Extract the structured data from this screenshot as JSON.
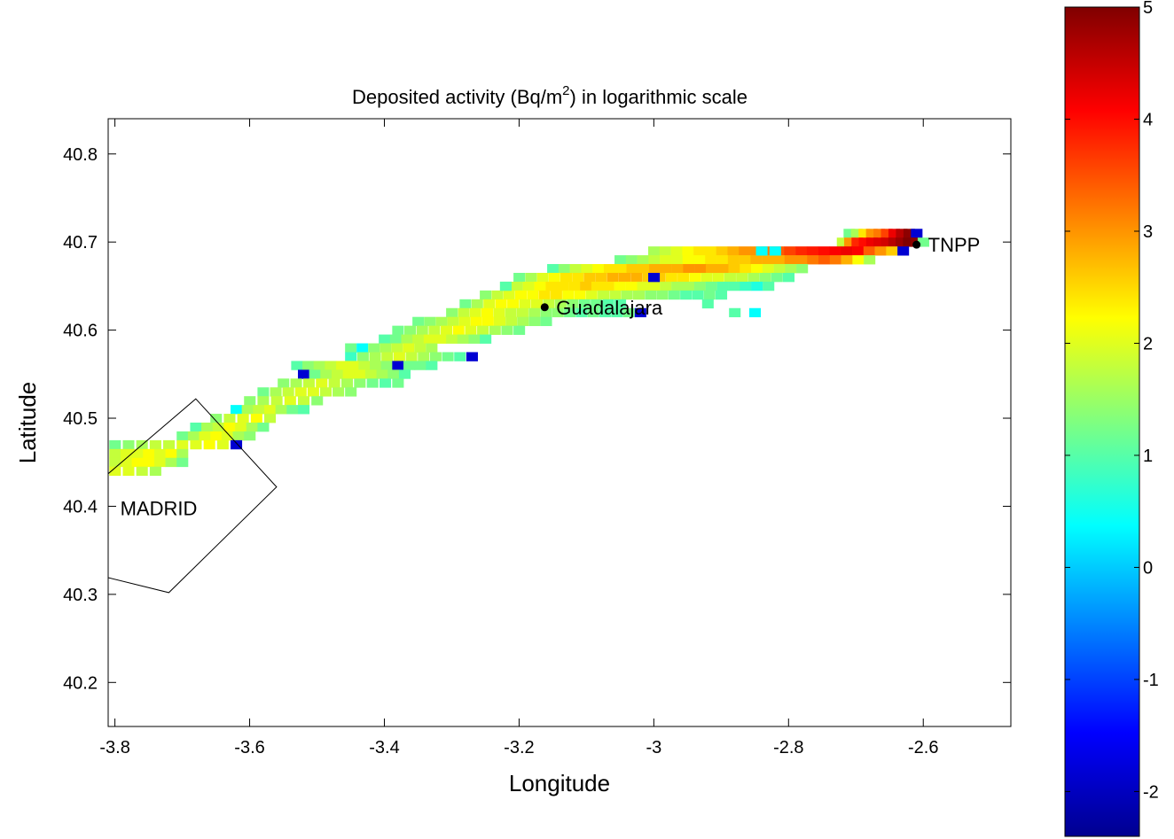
{
  "chart_data": {
    "type": "heatmap",
    "title": {
      "prefix": "Deposited activity (Bq/m",
      "superscript": "2",
      "suffix": ") in logarithmic scale"
    },
    "xlabel": "Longitude",
    "ylabel": "Latitude",
    "xlim": [
      -3.81,
      -2.47
    ],
    "ylim": [
      40.15,
      40.84
    ],
    "x_ticks": [
      -3.8,
      -3.6,
      -3.4,
      -3.2,
      -3.0,
      -2.8,
      -2.6
    ],
    "x_tick_labels": [
      "-3.8",
      "-3.6",
      "-3.4",
      "-3.2",
      "-3",
      "-2.8",
      "-2.6"
    ],
    "y_ticks": [
      40.2,
      40.3,
      40.4,
      40.5,
      40.6,
      40.7,
      40.8
    ],
    "y_tick_labels": [
      "40.2",
      "40.3",
      "40.4",
      "40.5",
      "40.6",
      "40.7",
      "40.8"
    ],
    "grid": false,
    "colormap": "jet",
    "colorbar": {
      "range": [
        -2.4,
        5
      ],
      "ticks": [
        -2,
        -1,
        0,
        1,
        2,
        3,
        4,
        5
      ],
      "tick_labels": [
        "-2",
        "-1",
        "0",
        "1",
        "2",
        "3",
        "4",
        "5"
      ],
      "position": "right"
    },
    "cell_size": {
      "dlon": 0.01667,
      "dlat": 0.01
    },
    "plume_rows": [
      {
        "lat": 40.71,
        "lon_start": -2.71,
        "lon_end": -2.61,
        "values": [
          1.2,
          1.6,
          2.4,
          3.0,
          3.2,
          3.6,
          4.2,
          4.6,
          4.9,
          -1.8
        ]
      },
      {
        "lat": 40.7,
        "lon_start": -2.72,
        "lon_end": -2.6,
        "values": [
          1.8,
          3.0,
          3.8,
          4.0,
          4.2,
          4.3,
          4.4,
          4.6,
          4.8,
          5.0,
          4.9,
          1.2
        ]
      },
      {
        "lat": 40.69,
        "lon_start": -3.0,
        "lon_end": -2.63,
        "values": [
          1.6,
          1.8,
          2.0,
          2.2,
          2.4,
          2.4,
          2.6,
          2.8,
          3.0,
          3.0,
          3.2,
          3.4,
          3.6,
          3.8,
          3.9,
          4.0,
          4.1,
          4.2,
          4.1,
          3.4,
          3.0,
          2.6,
          -1.8
        ]
      },
      {
        "lat": 40.68,
        "lon_start": -3.05,
        "lon_end": -2.68,
        "values": [
          1.2,
          1.4,
          1.6,
          1.8,
          2.0,
          2.0,
          2.2,
          2.2,
          2.4,
          2.4,
          2.6,
          2.6,
          2.8,
          2.8,
          2.8,
          3.0,
          3.0,
          3.2,
          3.4,
          3.2,
          2.8,
          2.2,
          1.6
        ]
      },
      {
        "lat": 40.67,
        "lon_start": -3.15,
        "lon_end": -2.78,
        "values": [
          1.0,
          1.4,
          1.8,
          2.0,
          2.2,
          2.4,
          2.4,
          2.6,
          2.6,
          2.8,
          2.8,
          2.8,
          3.0,
          3.0,
          2.8,
          2.8,
          2.6,
          2.4,
          2.2,
          2.0,
          1.8,
          1.6,
          1.4
        ]
      },
      {
        "lat": 40.66,
        "lon_start": -3.2,
        "lon_end": -2.8,
        "values": [
          1.2,
          1.6,
          2.0,
          2.2,
          2.4,
          2.4,
          2.6,
          2.6,
          2.8,
          2.8,
          2.8,
          2.6,
          2.6,
          2.4,
          2.4,
          2.2,
          2.0,
          2.0,
          1.8,
          1.8,
          1.6,
          1.4,
          1.2,
          1.0
        ]
      },
      {
        "lat": 40.65,
        "lon_start": -3.22,
        "lon_end": -2.83,
        "values": [
          1.4,
          1.8,
          2.0,
          2.2,
          2.4,
          2.4,
          2.4,
          2.6,
          2.4,
          2.4,
          2.2,
          2.2,
          2.0,
          2.0,
          1.8,
          1.6,
          1.6,
          1.4,
          1.2,
          1.0,
          1.0,
          0.8,
          0.6,
          1.0
        ]
      },
      {
        "lat": 40.64,
        "lon_start": -3.25,
        "lon_end": -2.9,
        "values": [
          1.4,
          1.8,
          2.0,
          2.2,
          2.2,
          2.4,
          2.4,
          2.2,
          2.2,
          2.0,
          1.8,
          1.8,
          1.6,
          1.6,
          1.4,
          1.4,
          1.2,
          1.0,
          1.0,
          1.2,
          1.0
        ]
      },
      {
        "lat": 40.63,
        "lon_start": -3.28,
        "lon_end": -3.05,
        "values": [
          1.2,
          1.6,
          2.0,
          2.2,
          2.2,
          2.0,
          2.0,
          1.8,
          1.6,
          1.4,
          1.2,
          1.2,
          1.0,
          1.0
        ]
      },
      {
        "lat": 40.62,
        "lon_start": -3.3,
        "lon_end": -3.02,
        "values": [
          1.4,
          1.8,
          2.0,
          2.2,
          2.0,
          1.8,
          1.8,
          1.6,
          1.4,
          1.4,
          1.2,
          1.0,
          1.2,
          1.0,
          1.0,
          1.2,
          -1.8
        ]
      },
      {
        "lat": 40.61,
        "lon_start": -3.35,
        "lon_end": -3.16,
        "values": [
          1.2,
          1.4,
          1.6,
          1.8,
          2.0,
          2.2,
          2.2,
          2.0,
          1.8,
          1.6,
          1.4,
          1.2
        ]
      },
      {
        "lat": 40.6,
        "lon_start": -3.38,
        "lon_end": -3.2,
        "values": [
          1.2,
          1.4,
          1.6,
          1.8,
          2.0,
          2.2,
          2.0,
          1.8,
          1.6,
          1.4,
          1.2
        ]
      },
      {
        "lat": 40.59,
        "lon_start": -3.4,
        "lon_end": -3.25,
        "values": [
          1.0,
          1.2,
          1.6,
          1.8,
          2.0,
          2.0,
          1.8,
          1.6,
          1.4,
          1.0
        ]
      },
      {
        "lat": 40.58,
        "lon_start": -3.45,
        "lon_end": -3.33,
        "values": [
          1.2,
          0.4,
          1.4,
          1.6,
          1.8,
          2.0,
          1.8,
          1.6
        ]
      },
      {
        "lat": 40.57,
        "lon_start": -3.45,
        "lon_end": -3.27,
        "values": [
          0.8,
          1.4,
          1.6,
          1.8,
          2.0,
          1.8,
          1.6,
          1.4,
          1.2,
          1.0,
          -1.8
        ]
      },
      {
        "lat": 40.56,
        "lon_start": -3.53,
        "lon_end": -3.33,
        "values": [
          1.0,
          1.4,
          1.6,
          1.8,
          2.0,
          2.0,
          1.8,
          1.6,
          1.4,
          -1.8,
          1.2,
          1.2,
          1.0
        ]
      },
      {
        "lat": 40.55,
        "lon_start": -3.52,
        "lon_end": -3.37,
        "values": [
          -1.8,
          1.2,
          1.6,
          1.8,
          2.0,
          2.0,
          1.8,
          1.6,
          1.4,
          1.0
        ]
      },
      {
        "lat": 40.54,
        "lon_start": -3.55,
        "lon_end": -3.38,
        "values": [
          1.4,
          1.6,
          1.8,
          2.0,
          1.8,
          1.6,
          1.4,
          1.2,
          1.0,
          1.2
        ]
      },
      {
        "lat": 40.53,
        "lon_start": -3.58,
        "lon_end": -3.45,
        "values": [
          1.2,
          1.6,
          1.8,
          2.0,
          2.0,
          1.8,
          1.6,
          1.4
        ]
      },
      {
        "lat": 40.52,
        "lon_start": -3.6,
        "lon_end": -3.5,
        "values": [
          1.4,
          1.6,
          1.8,
          2.0,
          1.8,
          1.4
        ]
      },
      {
        "lat": 40.51,
        "lon_start": -3.62,
        "lon_end": -3.52,
        "values": [
          0.4,
          1.6,
          1.8,
          2.0,
          1.6,
          1.2,
          1.0
        ]
      },
      {
        "lat": 40.5,
        "lon_start": -3.65,
        "lon_end": -3.57,
        "values": [
          1.4,
          1.8,
          2.0,
          2.2,
          1.8
        ]
      },
      {
        "lat": 40.49,
        "lon_start": -3.68,
        "lon_end": -3.58,
        "values": [
          1.0,
          1.6,
          1.8,
          2.2,
          2.0,
          1.6,
          1.2
        ]
      },
      {
        "lat": 40.48,
        "lon_start": -3.7,
        "lon_end": -3.6,
        "values": [
          1.2,
          1.6,
          2.0,
          2.2,
          2.0,
          1.6,
          1.4
        ]
      },
      {
        "lat": 40.47,
        "lon_start": -3.8,
        "lon_end": -3.62,
        "values": [
          1.2,
          1.4,
          1.6,
          1.8,
          1.8,
          2.0,
          2.0,
          2.2,
          2.0,
          -1.8
        ]
      },
      {
        "lat": 40.46,
        "lon_start": -3.8,
        "lon_end": -3.7,
        "values": [
          1.8,
          2.0,
          2.0,
          2.2,
          2.0,
          2.2,
          1.6
        ]
      },
      {
        "lat": 40.45,
        "lon_start": -3.8,
        "lon_end": -3.7,
        "values": [
          1.8,
          2.0,
          2.2,
          2.2,
          2.0,
          1.6,
          1.2
        ]
      },
      {
        "lat": 40.44,
        "lon_start": -3.8,
        "lon_end": -3.74,
        "values": [
          2.0,
          2.0,
          1.8,
          1.6
        ]
      }
    ],
    "scattered_cells": [
      {
        "lon": -2.84,
        "lat": 40.69,
        "value": 0.4
      },
      {
        "lon": -2.82,
        "lat": 40.69,
        "value": 0.4
      },
      {
        "lon": -3.0,
        "lat": 40.66,
        "value": -1.8
      },
      {
        "lon": -2.92,
        "lat": 40.63,
        "value": 1.0
      },
      {
        "lon": -2.88,
        "lat": 40.62,
        "value": 1.0
      },
      {
        "lon": -2.85,
        "lat": 40.62,
        "value": 0.4
      },
      {
        "lon": -3.22,
        "lat": 40.65,
        "value": 1.0
      }
    ],
    "annotations": [
      {
        "text": "TNPP",
        "lon": -2.61,
        "lat": 40.697,
        "marker": true
      },
      {
        "text": "Guadalajara",
        "lon": -3.162,
        "lat": 40.626,
        "marker": true
      },
      {
        "text": "MADRID",
        "lon": -3.8,
        "lat": 40.398,
        "marker": false
      }
    ],
    "boundary": {
      "label": "MADRID region outline",
      "points": [
        [
          -3.81,
          40.437
        ],
        [
          -3.68,
          40.522
        ],
        [
          -3.56,
          40.422
        ],
        [
          -3.72,
          40.302
        ],
        [
          -3.81,
          40.319
        ]
      ]
    }
  }
}
